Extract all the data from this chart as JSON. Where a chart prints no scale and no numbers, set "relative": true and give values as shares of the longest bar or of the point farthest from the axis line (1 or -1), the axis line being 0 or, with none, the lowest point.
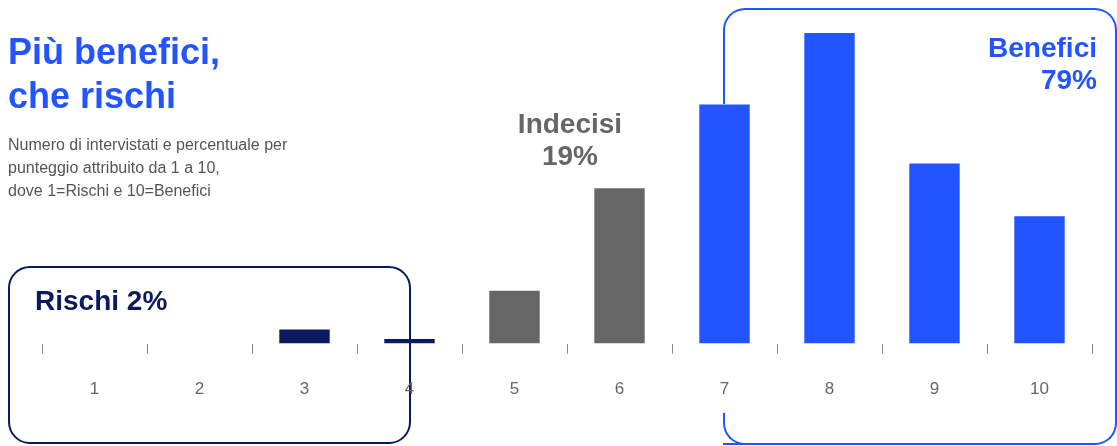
{
  "chart_data": {
    "type": "bar",
    "title": "Più benefici,\nche rischi",
    "subtitle": "Numero di intervistati e percentuale per\npunteggio attribuito da 1 a 10,\ndove 1=Rischi e 10=Benefici",
    "categories": [
      "1",
      "2",
      "3",
      "4",
      "5",
      "6",
      "7",
      "8",
      "9",
      "10"
    ],
    "values": [
      0,
      0,
      0.045,
      0.015,
      0.17,
      0.5,
      0.77,
      1,
      0.58,
      0.41
    ],
    "colors": [
      "#0b1a5e",
      "#0b1a5e",
      "#0b1a5e",
      "#0b1a5e",
      "#666666",
      "#666666",
      "#2255ff",
      "#2255ff",
      "#2255ff",
      "#2255ff"
    ],
    "relative": true,
    "grid": false,
    "legend": false,
    "annotations": [
      "Rischi 2%",
      "Indecisi\n19%",
      "Benefici\n79%"
    ]
  }
}
